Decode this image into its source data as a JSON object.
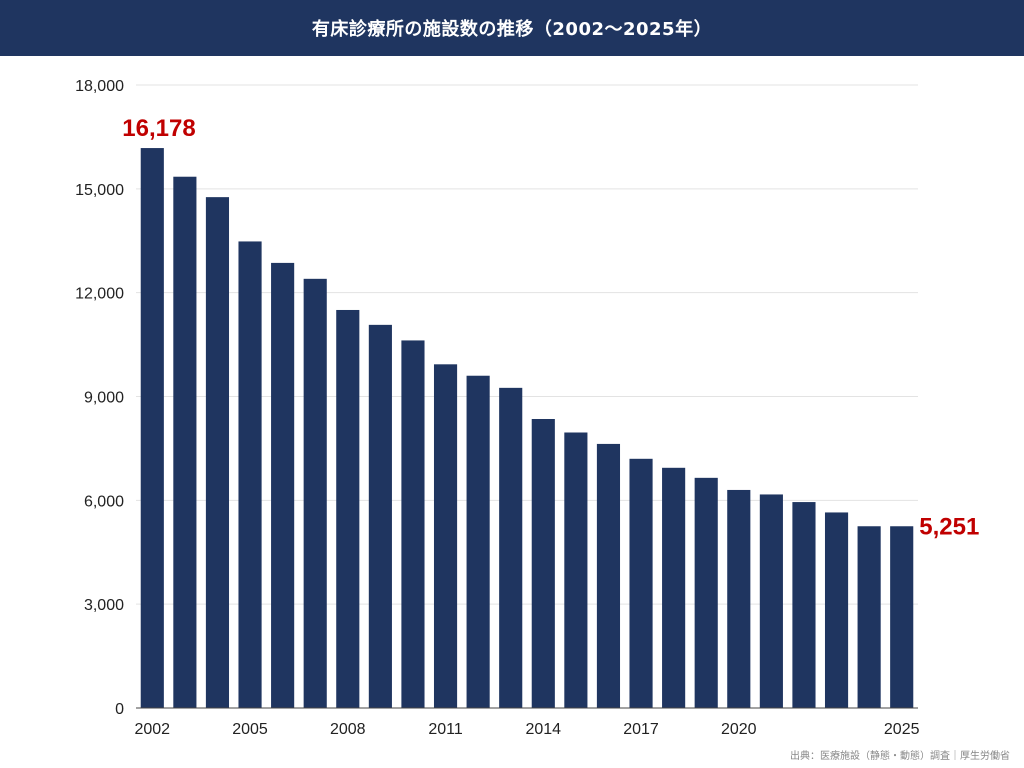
{
  "title": "有床診療所の施設数の推移（2002〜2025年）",
  "source": "出典：医療施設（静態・動態）調査｜厚生労働省",
  "colors": {
    "header_bg": "#1f3560",
    "bar": "#1f3560",
    "highlight_label": "#c00000"
  },
  "chart_data": {
    "type": "bar",
    "title": "有床診療所の施設数の推移（2002〜2025年）",
    "xlabel": "",
    "ylabel": "",
    "categories": [
      "2002",
      "2003",
      "2004",
      "2005",
      "2006",
      "2007",
      "2008",
      "2009",
      "2010",
      "2011",
      "2012",
      "2013",
      "2014",
      "2015",
      "2016",
      "2017",
      "2018",
      "2019",
      "2020",
      "2021",
      "2022",
      "2023",
      "2024",
      "2025"
    ],
    "values": [
      16178,
      15350,
      14760,
      13480,
      12860,
      12400,
      11500,
      11070,
      10620,
      9930,
      9600,
      9250,
      8350,
      7960,
      7630,
      7200,
      6940,
      6650,
      6300,
      6170,
      5950,
      5650,
      5251,
      5251
    ],
    "x_tick_labels": [
      "2002",
      "2005",
      "2008",
      "2011",
      "2014",
      "2017",
      "2020",
      "2025"
    ],
    "y_ticks": [
      0,
      3000,
      6000,
      9000,
      12000,
      15000,
      18000
    ],
    "y_tick_labels": [
      "0",
      "3,000",
      "6,000",
      "9,000",
      "12,000",
      "15,000",
      "18,000"
    ],
    "ylim": [
      0,
      18000
    ],
    "grid": true,
    "legend": "none",
    "data_labels": [
      {
        "category": "2002",
        "text": "16,178"
      },
      {
        "category": "2025",
        "text": "5,251"
      }
    ]
  }
}
